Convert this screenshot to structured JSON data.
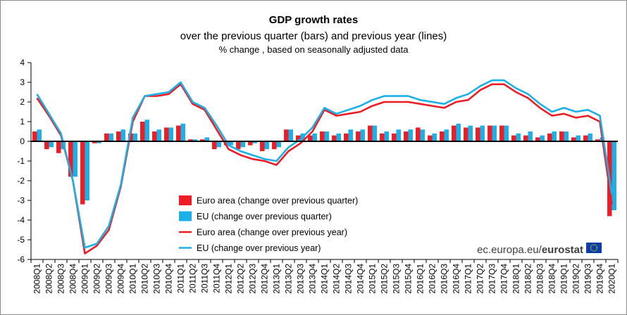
{
  "chart_data": {
    "type": "bar+line",
    "title": "GDP growth rates",
    "subtitle": "over the previous quarter (bars) and previous year (lines)",
    "note": "% change , based on seasonally adjusted data",
    "ylim": [
      -6,
      4
    ],
    "yticks": [
      4,
      3,
      2,
      1,
      0,
      -1,
      -2,
      -3,
      -4,
      -5,
      -6
    ],
    "grid": false,
    "legend_position": "bottom-center",
    "categories": [
      "2008Q1",
      "2008Q2",
      "2008Q3",
      "2008Q4",
      "2009Q1",
      "2009Q2",
      "2009Q3",
      "2009Q4",
      "2010Q1",
      "2010Q2",
      "2010Q3",
      "2010Q4",
      "2011Q1",
      "2011Q2",
      "2011Q3",
      "2011Q4",
      "2012Q1",
      "2012Q2",
      "2012Q3",
      "2012Q4",
      "2013Q1",
      "2013Q2",
      "2013Q3",
      "2013Q4",
      "2014Q1",
      "2014Q2",
      "2014Q3",
      "2014Q4",
      "2015Q1",
      "2015Q2",
      "2015Q3",
      "2015Q4",
      "2016Q1",
      "2016Q2",
      "2016Q3",
      "2016Q4",
      "2017Q1",
      "2017Q2",
      "2017Q3",
      "2017Q4",
      "2018Q1",
      "2018Q2",
      "2018Q3",
      "2018Q4",
      "2019Q1",
      "2019Q2",
      "2019Q3",
      "2019Q4",
      "2020Q1"
    ],
    "series": [
      {
        "name": "Euro area (change over previous quarter)",
        "kind": "bar",
        "color": "#ee1c25",
        "values": [
          0.5,
          -0.4,
          -0.6,
          -1.8,
          -3.2,
          -0.1,
          0.4,
          0.5,
          0.4,
          1.0,
          0.5,
          0.7,
          0.8,
          0.1,
          0.1,
          -0.4,
          -0.2,
          -0.4,
          -0.2,
          -0.5,
          -0.4,
          0.6,
          0.3,
          0.3,
          0.5,
          0.3,
          0.4,
          0.5,
          0.8,
          0.4,
          0.4,
          0.5,
          0.7,
          0.3,
          0.5,
          0.8,
          0.7,
          0.7,
          0.8,
          0.8,
          0.3,
          0.3,
          0.2,
          0.4,
          0.5,
          0.2,
          0.3,
          0.1,
          -3.8
        ]
      },
      {
        "name": "EU (change over previous quarter)",
        "kind": "bar",
        "color": "#1bb0e8",
        "values": [
          0.6,
          -0.3,
          -0.4,
          -1.8,
          -3.0,
          -0.1,
          0.4,
          0.6,
          0.4,
          1.1,
          0.6,
          0.7,
          0.9,
          0.1,
          0.2,
          -0.3,
          -0.2,
          -0.3,
          -0.1,
          -0.4,
          -0.3,
          0.6,
          0.4,
          0.4,
          0.5,
          0.4,
          0.6,
          0.6,
          0.8,
          0.5,
          0.6,
          0.6,
          0.6,
          0.4,
          0.6,
          0.9,
          0.8,
          0.8,
          0.8,
          0.8,
          0.4,
          0.5,
          0.3,
          0.5,
          0.5,
          0.3,
          0.4,
          0.2,
          -3.5
        ]
      },
      {
        "name": "Euro area (change over previous year)",
        "kind": "line",
        "color": "#ee1c25",
        "values": [
          2.2,
          1.3,
          0.3,
          -2.0,
          -5.7,
          -5.3,
          -4.5,
          -2.3,
          1.0,
          2.3,
          2.3,
          2.4,
          2.9,
          1.9,
          1.6,
          0.6,
          -0.4,
          -0.7,
          -0.9,
          -1.0,
          -1.2,
          -0.5,
          -0.1,
          0.5,
          1.6,
          1.3,
          1.4,
          1.5,
          1.8,
          2.0,
          2.0,
          2.0,
          1.9,
          1.8,
          1.7,
          2.0,
          2.1,
          2.6,
          2.9,
          2.9,
          2.5,
          2.2,
          1.7,
          1.3,
          1.4,
          1.2,
          1.3,
          1.0,
          -3.2
        ]
      },
      {
        "name": "EU (change over previous year)",
        "kind": "line",
        "color": "#1bb0e8",
        "values": [
          2.4,
          1.4,
          0.4,
          -2.0,
          -5.4,
          -5.2,
          -4.3,
          -2.2,
          1.2,
          2.3,
          2.4,
          2.5,
          3.0,
          2.0,
          1.7,
          0.8,
          -0.2,
          -0.5,
          -0.7,
          -0.9,
          -1.0,
          -0.3,
          0.1,
          0.7,
          1.7,
          1.4,
          1.6,
          1.8,
          2.1,
          2.3,
          2.3,
          2.3,
          2.1,
          2.0,
          1.9,
          2.2,
          2.4,
          2.8,
          3.1,
          3.1,
          2.7,
          2.4,
          1.9,
          1.5,
          1.7,
          1.5,
          1.6,
          1.3,
          -2.7
        ]
      }
    ]
  },
  "source": {
    "prefix": "ec.europa.eu/",
    "brand": "eurostat"
  }
}
